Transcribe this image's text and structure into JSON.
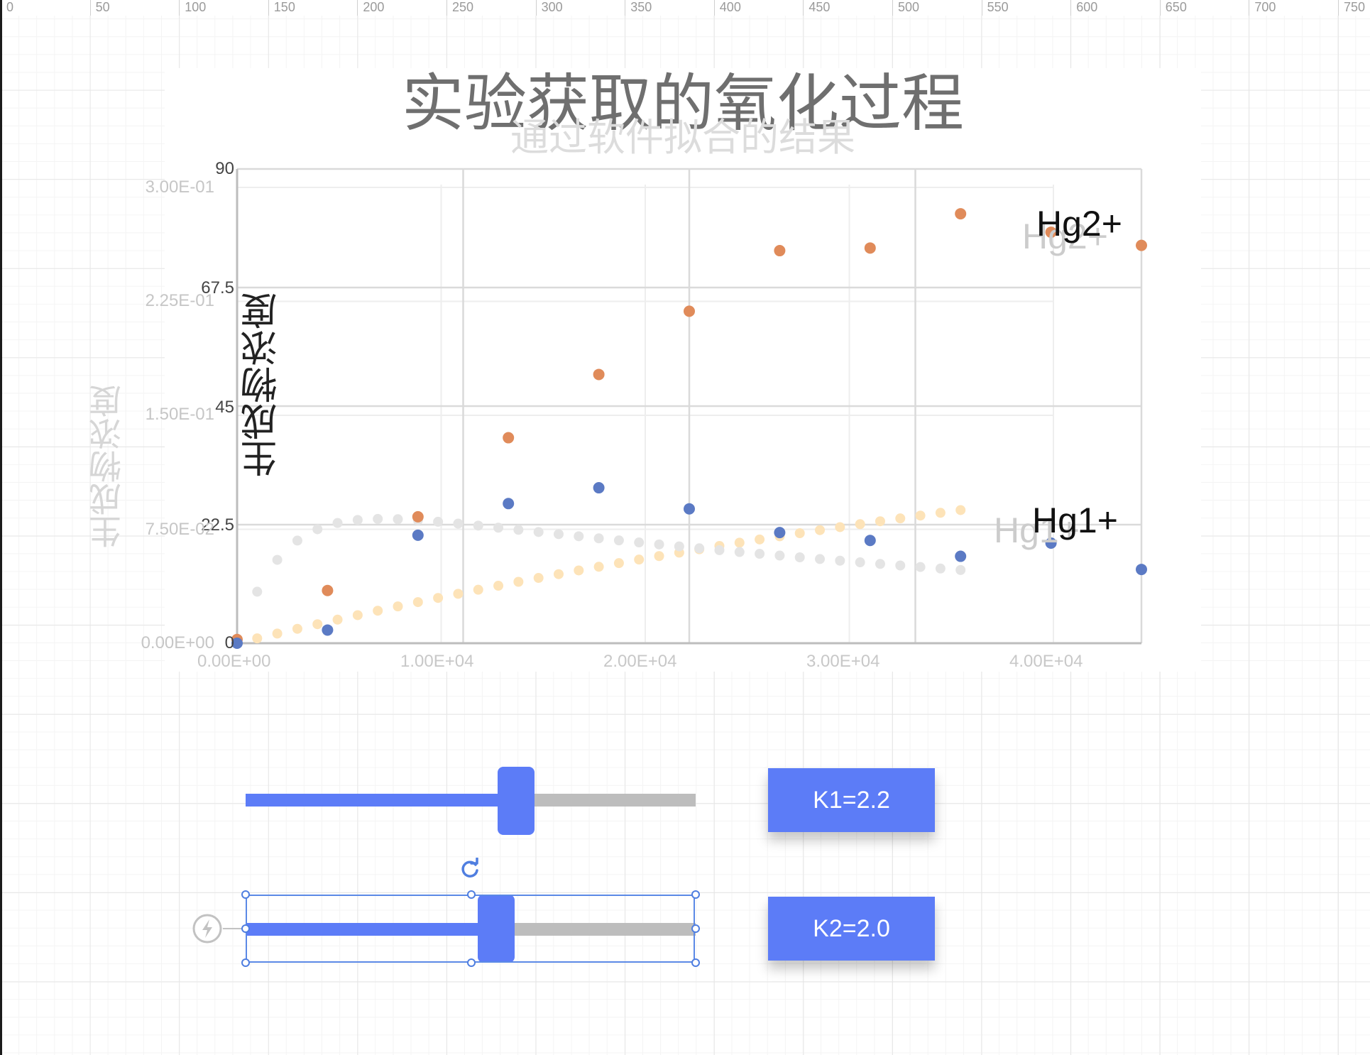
{
  "ruler": {
    "labels": [
      "0",
      "50",
      "100",
      "150",
      "200",
      "250",
      "300",
      "350",
      "400",
      "450",
      "500",
      "550",
      "600",
      "650",
      "700",
      "750"
    ]
  },
  "chart_data": {
    "type": "scatter",
    "title": "实验获取的氧化过程",
    "subtitle": "通过软件拟合的结果",
    "ylabel": "生成物浓度",
    "ylabel_ghost": "生成物浓度",
    "y_ticks_dark": [
      "90",
      "67.5",
      "45",
      "22.5",
      "0"
    ],
    "y_ticks_ghost": [
      "3.00E-01",
      "2.25E-01",
      "1.50E-01",
      "7.50E-02",
      "0.00E+00"
    ],
    "x_ticks": [
      "0.00E+00",
      "1.00E+04",
      "2.00E+04",
      "3.00E+04",
      "4.00E+04"
    ],
    "ylim": [
      0,
      90
    ],
    "xlim": [
      0,
      45000
    ],
    "grid": true,
    "series": [
      {
        "name": "Hg2+",
        "color": "#e08b5a",
        "x": [
          0,
          4500,
          9000,
          13500,
          18000,
          22500,
          27000,
          31500,
          36000,
          40500,
          45000
        ],
        "y": [
          0.7,
          10,
          24,
          39,
          51,
          63,
          74.5,
          75,
          81.5,
          78,
          75.5
        ]
      },
      {
        "name": "Hg1+",
        "color": "#5b7ac4",
        "x": [
          0,
          4500,
          9000,
          13500,
          18000,
          22500,
          27000,
          31500,
          36000,
          40500,
          45000
        ],
        "y": [
          0,
          2.5,
          20.5,
          26.5,
          29.5,
          25.5,
          21,
          19.5,
          16.5,
          19,
          14
        ]
      }
    ],
    "fit_series_colors": [
      "#fde3b8",
      "#e4e4e4"
    ],
    "series_labels": [
      {
        "text": "Hg2+",
        "color": "#111111"
      },
      {
        "text": "Hg2+",
        "color": "#cccccc"
      },
      {
        "text": "Hg1+",
        "color": "#111111"
      },
      {
        "text": "Hg1+",
        "color": "#cccccc"
      }
    ]
  },
  "sliders": [
    {
      "label": "K1=2.2",
      "fraction": 0.6
    },
    {
      "label": "K2=2.0",
      "fraction": 0.555
    }
  ],
  "colors": {
    "accent": "#5c7cf7",
    "track": "#bdbdbd",
    "selection": "#5b89e6"
  },
  "icons": {
    "rotate": "rotate-icon",
    "lightning": "lightning-icon"
  }
}
